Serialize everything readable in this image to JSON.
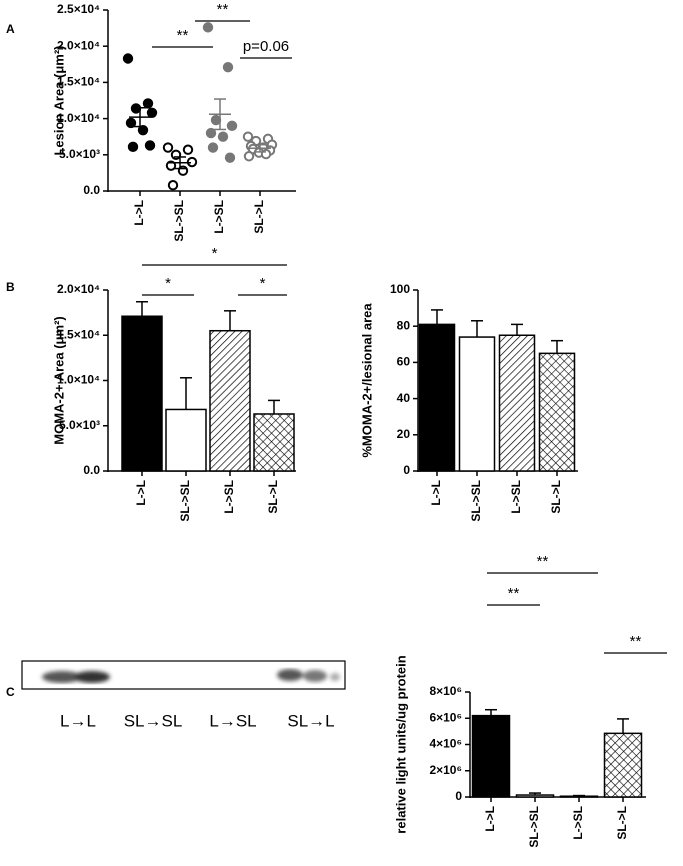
{
  "panel_labels": [
    "A",
    "B",
    "C"
  ],
  "blot": {
    "lanes": [
      "L→L",
      "SL→SL",
      "L→SL",
      "SL→L"
    ]
  },
  "chart_data": [
    {
      "type": "dot",
      "y_label": "Lesion Area (μm²)",
      "categories": [
        "L->L",
        "SL->SL",
        "L->SL",
        "SL->L"
      ],
      "values": [
        [
          18300,
          12100,
          11400,
          10800,
          9400,
          8400,
          6100,
          6300
        ],
        [
          6000,
          5700,
          5000,
          4000,
          3500,
          2800,
          800
        ],
        [
          22600,
          17100,
          9800,
          9000,
          8000,
          7500,
          6000,
          4600
        ],
        [
          7500,
          7200,
          6900,
          6400,
          6200,
          6000,
          5800,
          5600,
          5300,
          5100,
          4800
        ]
      ],
      "means": [
        10200,
        3900,
        10600,
        5900
      ],
      "errors": [
        1300,
        800,
        2100,
        500
      ],
      "colors": [
        "#000000",
        "#000000",
        "#777777",
        "#777777"
      ],
      "filled": [
        true,
        false,
        true,
        false
      ],
      "ylim": [
        0,
        25000
      ],
      "yticks": [
        {
          "value": 0,
          "label": "0.0"
        },
        {
          "value": 5000,
          "label": "5.0×10³"
        },
        {
          "value": 10000,
          "label": "1.0×10⁴"
        },
        {
          "value": 15000,
          "label": "1.5×10⁴"
        },
        {
          "value": 20000,
          "label": "2.0×10⁴"
        },
        {
          "value": 25000,
          "label": "2.5×10⁴"
        }
      ],
      "annotations": [
        "**",
        "**",
        "p=0.06"
      ]
    },
    {
      "type": "bar",
      "y_label": "MOMA-2+ Area (μm²)",
      "categories": [
        "L->L",
        "SL->SL",
        "L->SL",
        "SL->L"
      ],
      "values": [
        17100,
        6800,
        15500,
        6300
      ],
      "errors": [
        1600,
        3500,
        2200,
        1500
      ],
      "patterns": [
        "solid",
        "open",
        "hatch",
        "crosshatch"
      ],
      "ylim": [
        0,
        20000
      ],
      "yticks": [
        {
          "value": 0,
          "label": "0.0"
        },
        {
          "value": 5000,
          "label": "5.0×10³"
        },
        {
          "value": 10000,
          "label": "1.0×10⁴"
        },
        {
          "value": 15000,
          "label": "1.5×10⁴"
        },
        {
          "value": 20000,
          "label": "2.0×10⁴"
        }
      ],
      "annotations": [
        "*",
        "*",
        "*"
      ]
    },
    {
      "type": "bar",
      "y_label": "%MOMA-2+/lesional area",
      "categories": [
        "L->L",
        "SL->SL",
        "L->SL",
        "SL->L"
      ],
      "values": [
        81,
        74,
        75,
        65
      ],
      "errors": [
        8,
        9,
        6,
        7
      ],
      "patterns": [
        "solid",
        "open",
        "hatch",
        "crosshatch"
      ],
      "ylim": [
        0,
        100
      ],
      "yticks": [
        0,
        20,
        40,
        60,
        80,
        100
      ],
      "annotations": []
    },
    {
      "type": "bar",
      "y_label": "relative light units/ug protein",
      "categories": [
        "L->L",
        "SL->SL",
        "L->SL",
        "SL->L"
      ],
      "values": [
        6200000,
        150000,
        60000,
        4850000
      ],
      "errors": [
        450000,
        150000,
        50000,
        1100000
      ],
      "patterns": [
        "solid",
        "open",
        "hatch",
        "crosshatch"
      ],
      "ylim": [
        0,
        8000000
      ],
      "yticks": [
        {
          "value": 0,
          "label": "0"
        },
        {
          "value": 2000000,
          "label": "2×10⁶"
        },
        {
          "value": 4000000,
          "label": "4×10⁶"
        },
        {
          "value": 6000000,
          "label": "6×10⁶"
        },
        {
          "value": 8000000,
          "label": "8×10⁶"
        }
      ],
      "annotations": [
        "**",
        "**",
        "**"
      ]
    }
  ]
}
